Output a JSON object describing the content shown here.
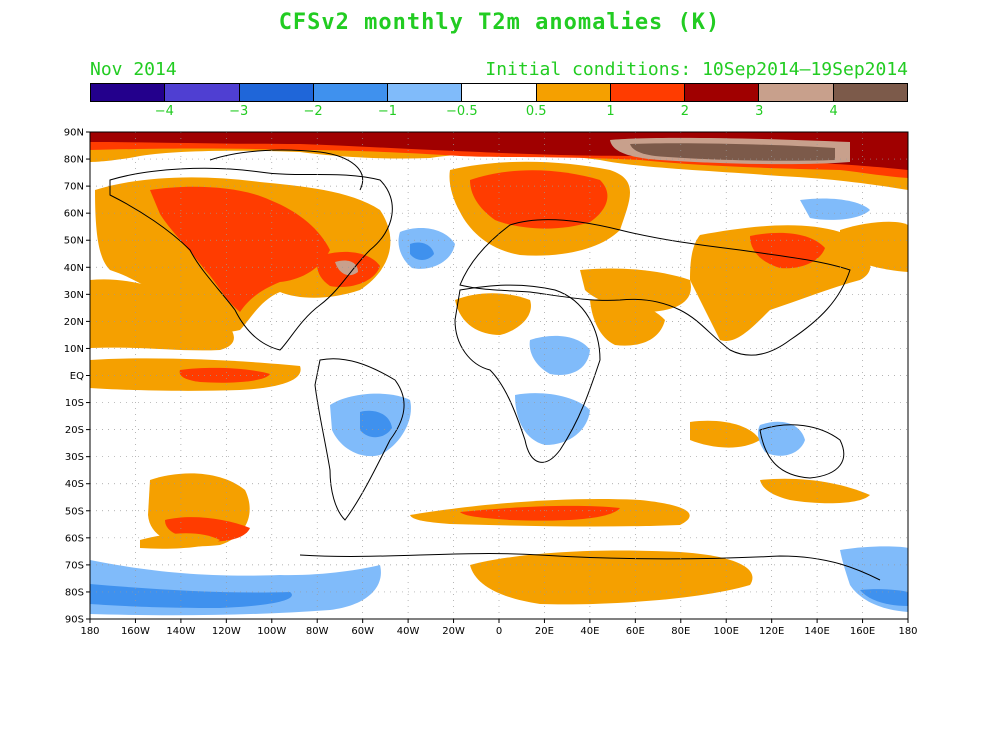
{
  "title": "CFSv2 monthly T2m anomalies (K)",
  "subtitle_left": "Nov 2014",
  "subtitle_right": "Initial conditions: 10Sep2014–19Sep2014",
  "colorbar": {
    "colors": [
      "#23008c",
      "#4f3fd2",
      "#1f66d9",
      "#3f91ee",
      "#80bbfa",
      "#ffffff",
      "#f5a000",
      "#ff3c00",
      "#a00000",
      "#c8a08c",
      "#7c5a4a"
    ],
    "labels": [
      "−4",
      "−3",
      "−2",
      "−1",
      "−0.5",
      "0.5",
      "1",
      "2",
      "3",
      "4"
    ]
  },
  "axes": {
    "lat_labels": [
      "90N",
      "80N",
      "70N",
      "60N",
      "50N",
      "40N",
      "30N",
      "20N",
      "10N",
      "EQ",
      "10S",
      "20S",
      "30S",
      "40S",
      "50S",
      "60S",
      "70S",
      "80S",
      "90S"
    ],
    "lon_labels": [
      "180",
      "160W",
      "140W",
      "120W",
      "100W",
      "80W",
      "60W",
      "40W",
      "20W",
      "0",
      "20E",
      "40E",
      "60E",
      "80E",
      "100E",
      "120E",
      "140E",
      "160E",
      "180"
    ]
  }
}
